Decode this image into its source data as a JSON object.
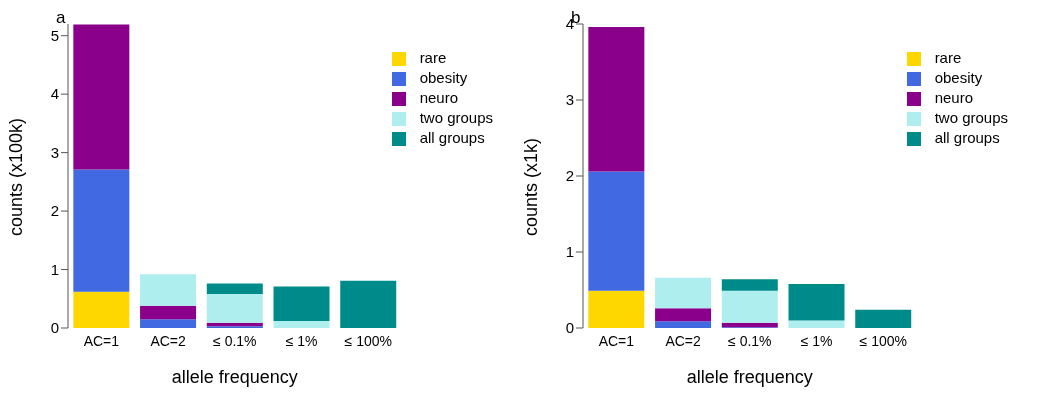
{
  "chart_data": [
    {
      "type": "bar",
      "title": "a",
      "xlabel": "allele frequency",
      "ylabel": "counts (x100k)",
      "categories": [
        "AC=1",
        "AC=2",
        "≤ 0.1%",
        "≤ 1%",
        "≤ 100%"
      ],
      "stacked": true,
      "ylim": [
        0,
        5.2
      ],
      "yticks": [
        0,
        1,
        2,
        3,
        4,
        5
      ],
      "grid": false,
      "legend": "top right",
      "series": [
        {
          "name": "rare",
          "color": "#ffd700",
          "values": [
            0.62,
            null,
            0,
            0,
            0
          ]
        },
        {
          "name": "obesity",
          "color": "#4169e1",
          "values": [
            2.09,
            0.15,
            0.03,
            0,
            0
          ]
        },
        {
          "name": "neuro",
          "color": "#8b008b",
          "values": [
            2.48,
            0.23,
            0.06,
            0,
            0
          ]
        },
        {
          "name": "two groups",
          "color": "#afeeee",
          "values": [
            0,
            0.54,
            0.49,
            0.12,
            0
          ]
        },
        {
          "name": "all groups",
          "color": "#008b8b",
          "values": [
            0,
            0,
            0.18,
            0.59,
            0.81
          ]
        }
      ]
    },
    {
      "type": "bar",
      "title": "b",
      "xlabel": "allele frequency",
      "ylabel": "counts (x1k)",
      "categories": [
        "AC=1",
        "AC=2",
        "≤ 0.1%",
        "≤ 1%",
        "≤ 100%"
      ],
      "stacked": true,
      "ylim": [
        0,
        4
      ],
      "yticks": [
        0,
        1,
        2,
        3,
        4
      ],
      "grid": false,
      "legend": "top right",
      "series": [
        {
          "name": "rare",
          "color": "#ffd700",
          "values": [
            0.49,
            null,
            0,
            0,
            0
          ]
        },
        {
          "name": "obesity",
          "color": "#4169e1",
          "values": [
            1.57,
            0.09,
            0.01,
            0,
            0
          ]
        },
        {
          "name": "neuro",
          "color": "#8b008b",
          "values": [
            1.9,
            0.17,
            0.06,
            0,
            0
          ]
        },
        {
          "name": "two groups",
          "color": "#afeeee",
          "values": [
            0,
            0.4,
            0.42,
            0.1,
            0
          ]
        },
        {
          "name": "all groups",
          "color": "#008b8b",
          "values": [
            0,
            0,
            0.15,
            0.48,
            0.24
          ]
        }
      ]
    }
  ]
}
